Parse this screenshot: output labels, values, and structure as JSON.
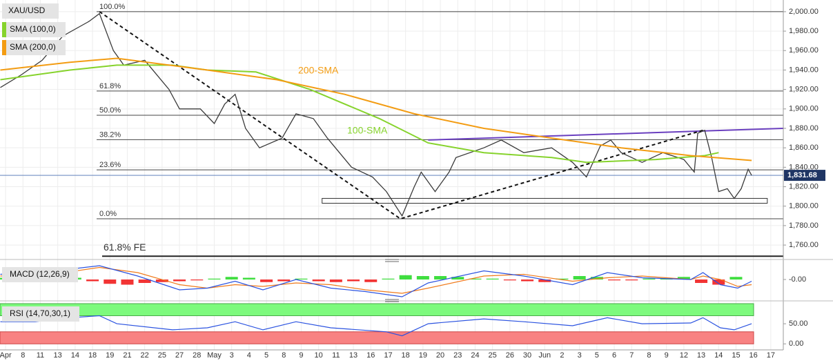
{
  "chart_data": {
    "type": "line",
    "grid": true,
    "xlim": [
      -0.32,
      44.72
    ],
    "xticks": [
      {
        "value": 0,
        "label": "Apr"
      },
      {
        "value": 1,
        "label": "8"
      },
      {
        "value": 2,
        "label": "11"
      },
      {
        "value": 3,
        "label": "13"
      },
      {
        "value": 4,
        "label": "14"
      },
      {
        "value": 5,
        "label": "18"
      },
      {
        "value": 6,
        "label": "19"
      },
      {
        "value": 7,
        "label": "21"
      },
      {
        "value": 8,
        "label": "22"
      },
      {
        "value": 9,
        "label": "25"
      },
      {
        "value": 10,
        "label": "27"
      },
      {
        "value": 11,
        "label": "28"
      },
      {
        "value": 12,
        "label": "May"
      },
      {
        "value": 13,
        "label": "3"
      },
      {
        "value": 14,
        "label": "4"
      },
      {
        "value": 15,
        "label": "5"
      },
      {
        "value": 16,
        "label": "8"
      },
      {
        "value": 17,
        "label": "9"
      },
      {
        "value": 18,
        "label": "10"
      },
      {
        "value": 19,
        "label": "11"
      },
      {
        "value": 20,
        "label": "13"
      },
      {
        "value": 21,
        "label": "16"
      },
      {
        "value": 22,
        "label": "17"
      },
      {
        "value": 23,
        "label": "18"
      },
      {
        "value": 24,
        "label": "19"
      },
      {
        "value": 25,
        "label": "20"
      },
      {
        "value": 26,
        "label": "23"
      },
      {
        "value": 27,
        "label": "24"
      },
      {
        "value": 28,
        "label": "25"
      },
      {
        "value": 29,
        "label": "26"
      },
      {
        "value": 30,
        "label": "30"
      },
      {
        "value": 31,
        "label": "Jun"
      },
      {
        "value": 32,
        "label": "2"
      },
      {
        "value": 33,
        "label": "3"
      },
      {
        "value": 34,
        "label": "5"
      },
      {
        "value": 35,
        "label": "6"
      },
      {
        "value": 36,
        "label": "7"
      },
      {
        "value": 37,
        "label": "8"
      },
      {
        "value": 38,
        "label": "9"
      },
      {
        "value": 39,
        "label": "12"
      },
      {
        "value": 40,
        "label": "13"
      },
      {
        "value": 41,
        "label": "14"
      },
      {
        "value": 42,
        "label": "15"
      },
      {
        "value": 43,
        "label": "16"
      },
      {
        "value": 44,
        "label": "17"
      }
    ],
    "ylim": [
      1748,
      2012
    ],
    "yticks": [
      {
        "value": 1760,
        "label": "1,760.00"
      },
      {
        "value": 1780,
        "label": "1,780.00"
      },
      {
        "value": 1800,
        "label": "1,800.00"
      },
      {
        "value": 1820,
        "label": "1,820.00"
      },
      {
        "value": 1840,
        "label": "1,840.00"
      },
      {
        "value": 1860,
        "label": "1,860.00"
      },
      {
        "value": 1880,
        "label": "1,880.00"
      },
      {
        "value": 1900,
        "label": "1,900.00"
      },
      {
        "value": 1920,
        "label": "1,920.00"
      },
      {
        "value": 1940,
        "label": "1,940.00"
      },
      {
        "value": 1960,
        "label": "1,960.00"
      },
      {
        "value": 1980,
        "label": "1,980.00"
      },
      {
        "value": 2000,
        "label": "2,000.00"
      }
    ],
    "series": [
      {
        "name": "XAU/USD",
        "color": "#3a3a3a",
        "x": [
          -0.3,
          0.9,
          2.1,
          3.3,
          4.8,
          5.4,
          6.2,
          6.8,
          8.0,
          9.4,
          10.0,
          11.2,
          12.0,
          12.6,
          13.2,
          13.8,
          14.6,
          15.9,
          16.7,
          17.7,
          18.5,
          19.9,
          21.1,
          21.9,
          22.8,
          23.5,
          23.9,
          24.7,
          25.5,
          25.9,
          27.5,
          28.5,
          29.8,
          31.4,
          32.6,
          33.4,
          34.2,
          34.8,
          35.4,
          36.6,
          37.8,
          39.0,
          39.6,
          39.8,
          40.2,
          40.6,
          41.0,
          41.5,
          41.9,
          42.3,
          42.7,
          42.9
        ],
        "values": [
          1922,
          1935,
          1950,
          1975,
          1990,
          1998,
          1960,
          1945,
          1950,
          1920,
          1900,
          1900,
          1885,
          1905,
          1915,
          1880,
          1860,
          1870,
          1895,
          1890,
          1870,
          1840,
          1830,
          1815,
          1790,
          1820,
          1835,
          1815,
          1835,
          1850,
          1860,
          1868,
          1855,
          1860,
          1845,
          1830,
          1862,
          1868,
          1855,
          1845,
          1855,
          1848,
          1835,
          1875,
          1878,
          1850,
          1815,
          1818,
          1808,
          1818,
          1838,
          1831.68
        ]
      },
      {
        "name": "SMA (100,0)",
        "color": "#86d32c",
        "x": [
          -0.3,
          3.7,
          6.4,
          9.6,
          11.6,
          14.4,
          17.5,
          21.5,
          24.3,
          27.5,
          31.4,
          33.4,
          37.4,
          40.2,
          41.0
        ],
        "values": [
          1930,
          1940,
          1945,
          1945,
          1940,
          1938,
          1920,
          1890,
          1865,
          1855,
          1850,
          1845,
          1848,
          1852,
          1855
        ]
      },
      {
        "name": "SMA (200,0)",
        "color": "#f39c12",
        "x": [
          -0.3,
          3.7,
          6.4,
          11.6,
          15.6,
          19.5,
          23.5,
          27.5,
          31.4,
          35.4,
          39.4,
          42.9
        ],
        "values": [
          1940,
          1948,
          1952,
          1940,
          1930,
          1915,
          1895,
          1880,
          1870,
          1860,
          1852,
          1847
        ]
      }
    ],
    "last_price": {
      "value": 1831.68,
      "label": "1,831.68"
    },
    "fib_levels": [
      {
        "value": 2000,
        "label": "100.0%"
      },
      {
        "value": 1918.4,
        "label": "61.8%"
      },
      {
        "value": 1893.5,
        "label": "50.0%"
      },
      {
        "value": 1868.4,
        "label": "38.2%"
      },
      {
        "value": 1837.3,
        "label": "23.6%"
      },
      {
        "value": 1787,
        "label": "0.0%"
      }
    ],
    "fe_level": {
      "value": 1748.5,
      "label": "61.8% FE"
    },
    "annotations": [
      {
        "text": "200-SMA",
        "color": "#f39c12"
      },
      {
        "text": "100-SMA",
        "color": "#86d32c"
      }
    ],
    "zigzag": {
      "x": [
        5.4,
        22.7,
        40.1
      ],
      "values": [
        2000,
        1787,
        1878
      ]
    },
    "trendline": {
      "color": "#6a3fbf",
      "x": [
        24.3,
        44.72
      ],
      "values": [
        1868,
        1880
      ]
    },
    "support": {
      "x": [
        18.2,
        43.8
      ],
      "values": [
        1803,
        1808
      ]
    },
    "macd": {
      "label": "MACD (12,26,9)",
      "ylim": [
        -10,
        10
      ],
      "yticks": [
        {
          "value": 0,
          "label": "-0.00"
        }
      ],
      "macd_line": {
        "color": "#2a52e0",
        "x": [
          -0.3,
          3.7,
          5.4,
          7.6,
          10.0,
          11.6,
          13.2,
          14.8,
          16.7,
          18.7,
          20.7,
          22.8,
          24.3,
          27.5,
          29.8,
          32.6,
          34.6,
          36.6,
          39.4,
          40.1,
          41.1,
          42.1,
          42.9
        ],
        "values": [
          3,
          6,
          8,
          2,
          -6,
          -5,
          -1,
          -6,
          0,
          -5,
          -7,
          -10,
          -2,
          5,
          2,
          -3,
          4,
          1,
          0,
          4,
          -3,
          -5,
          -1
        ]
      },
      "signal_line": {
        "color": "#f07a1a",
        "x": [
          -0.3,
          3.7,
          5.4,
          7.6,
          10.0,
          11.6,
          13.2,
          14.8,
          16.7,
          18.7,
          20.7,
          22.8,
          24.3,
          27.5,
          29.8,
          32.6,
          34.6,
          36.6,
          39.4,
          40.1,
          41.1,
          42.1,
          42.9
        ],
        "values": [
          2,
          4.5,
          7,
          4,
          -3,
          -5,
          -3,
          -4,
          -2,
          -3,
          -6,
          -8,
          -5,
          2,
          3,
          -1,
          1,
          2,
          0,
          2,
          0,
          -4,
          -3
        ]
      },
      "histogram": {
        "up_color": "#1ed81e",
        "down_color": "#f01010",
        "x": [
          0,
          1,
          2,
          3,
          4,
          5,
          6,
          7,
          8,
          9,
          10,
          11,
          12,
          13,
          14,
          15,
          16,
          17,
          18,
          19,
          20,
          21,
          22,
          23,
          24,
          25,
          26,
          27,
          28,
          29,
          30,
          31,
          32,
          33,
          34,
          35,
          36,
          37,
          38,
          39,
          40,
          41,
          42
        ],
        "values": [
          1,
          1.5,
          2,
          2,
          1,
          -1,
          -2.5,
          -3,
          -2,
          -1.5,
          -1,
          -0.5,
          0.5,
          1.5,
          1,
          -1.5,
          -1,
          0.5,
          -1,
          -1.5,
          -1,
          -1.5,
          0.5,
          2.5,
          2,
          2,
          1.5,
          0.5,
          0.5,
          -0.5,
          -1,
          -1.5,
          0.5,
          2,
          1.5,
          -0.5,
          -0.5,
          0.5,
          0.5,
          1.5,
          -2,
          -3,
          1.5
        ]
      }
    },
    "rsi": {
      "label": "RSI (14,70,30,1)",
      "ylim": [
        -15,
        100
      ],
      "yticks": [
        {
          "value": 0,
          "label": "0.00"
        },
        {
          "value": 50,
          "label": "50.00"
        }
      ],
      "overbought": 70,
      "oversold": 30,
      "line": {
        "color": "#2a52e0",
        "x": [
          -0.3,
          1.7,
          3.7,
          5.4,
          6.4,
          9.6,
          11.6,
          13.2,
          14.8,
          16.7,
          18.7,
          21.9,
          22.8,
          24.3,
          27.5,
          29.8,
          32.6,
          34.6,
          36.6,
          39.4,
          40.1,
          41.1,
          41.9,
          42.9
        ],
        "values": [
          55,
          55,
          65,
          70,
          50,
          35,
          40,
          55,
          35,
          55,
          40,
          30,
          20,
          50,
          62,
          55,
          45,
          65,
          50,
          52,
          65,
          40,
          35,
          50
        ]
      }
    }
  }
}
